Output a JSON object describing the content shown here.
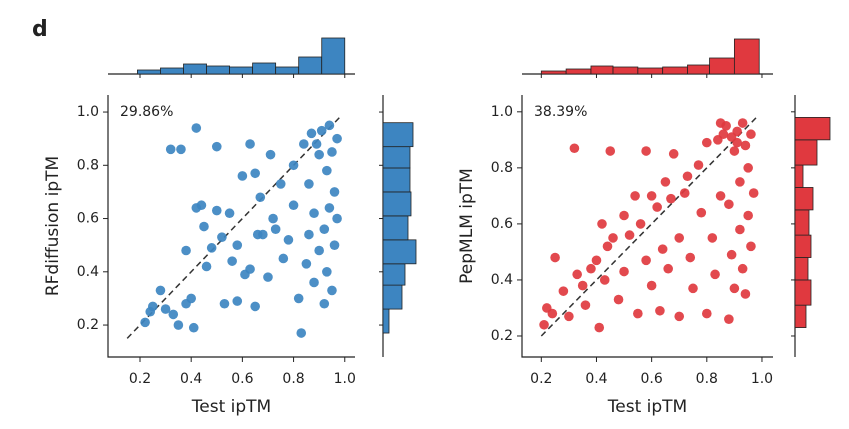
{
  "panel_label": "d",
  "chart_data": [
    {
      "type": "scatter",
      "annotation": "29.86%",
      "xlabel": "Test ipTM",
      "ylabel": "RFdiffusion ipTM",
      "color": "#3d85c1",
      "xlim": [
        0.075,
        1.04
      ],
      "ylim": [
        0.08,
        1.064
      ],
      "xticks": [
        0.2,
        0.4,
        0.6,
        0.8,
        {
          "value": 1.0,
          "label": "1.0"
        }
      ],
      "yticks": [
        0.2,
        0.4,
        0.6,
        0.8,
        {
          "value": 1.0,
          "label": "1.0"
        }
      ],
      "x": [
        0.22,
        0.24,
        0.25,
        0.28,
        0.3,
        0.32,
        0.36,
        0.33,
        0.35,
        0.38,
        0.38,
        0.4,
        0.41,
        0.42,
        0.42,
        0.44,
        0.46,
        0.45,
        0.48,
        0.5,
        0.5,
        0.52,
        0.53,
        0.55,
        0.56,
        0.58,
        0.58,
        0.6,
        0.61,
        0.63,
        0.63,
        0.65,
        0.65,
        0.66,
        0.67,
        0.68,
        0.7,
        0.71,
        0.72,
        0.73,
        0.75,
        0.76,
        0.78,
        0.8,
        0.8,
        0.82,
        0.83,
        0.84,
        0.85,
        0.86,
        0.87,
        0.88,
        0.89,
        0.9,
        0.9,
        0.91,
        0.92,
        0.92,
        0.93,
        0.93,
        0.94,
        0.94,
        0.95,
        0.95,
        0.96,
        0.96,
        0.97,
        0.97,
        0.88,
        0.86
      ],
      "y": [
        0.21,
        0.25,
        0.27,
        0.33,
        0.26,
        0.86,
        0.86,
        0.24,
        0.2,
        0.28,
        0.48,
        0.3,
        0.19,
        0.94,
        0.64,
        0.65,
        0.42,
        0.57,
        0.49,
        0.87,
        0.63,
        0.53,
        0.28,
        0.62,
        0.44,
        0.29,
        0.5,
        0.76,
        0.39,
        0.88,
        0.41,
        0.27,
        0.77,
        0.54,
        0.68,
        0.54,
        0.38,
        0.84,
        0.6,
        0.56,
        0.73,
        0.45,
        0.52,
        0.65,
        0.8,
        0.3,
        0.17,
        0.88,
        0.43,
        0.73,
        0.92,
        0.62,
        0.88,
        0.48,
        0.84,
        0.93,
        0.56,
        0.28,
        0.78,
        0.4,
        0.64,
        0.95,
        0.85,
        0.33,
        0.7,
        0.5,
        0.9,
        0.6,
        0.36,
        0.54
      ],
      "x_hist": {
        "bins": [
          0.19,
          0.28,
          0.37,
          0.46,
          0.55,
          0.64,
          0.73,
          0.82,
          0.91,
          1.0
        ],
        "counts": [
          4,
          6,
          10,
          8,
          7,
          11,
          7,
          17,
          36
        ]
      },
      "y_hist": {
        "bins": [
          0.17,
          0.26,
          0.35,
          0.43,
          0.52,
          0.61,
          0.7,
          0.79,
          0.87,
          0.96
        ],
        "counts": [
          6,
          19,
          22,
          33,
          25,
          28,
          27,
          27,
          30
        ]
      }
    },
    {
      "type": "scatter",
      "annotation": "38.39%",
      "xlabel": "Test ipTM",
      "ylabel": "PepMLM ipTM",
      "color": "#e0393f",
      "xlim": [
        0.13,
        1.04
      ],
      "ylim": [
        0.125,
        1.06
      ],
      "xticks": [
        0.2,
        0.4,
        0.6,
        0.8,
        {
          "value": 1.0,
          "label": "1.0"
        }
      ],
      "yticks": [
        0.2,
        0.4,
        0.6,
        0.8,
        {
          "value": 1.0,
          "label": "1.0"
        }
      ],
      "x": [
        0.21,
        0.22,
        0.24,
        0.25,
        0.28,
        0.3,
        0.32,
        0.33,
        0.35,
        0.36,
        0.38,
        0.4,
        0.41,
        0.42,
        0.43,
        0.44,
        0.45,
        0.46,
        0.48,
        0.5,
        0.5,
        0.52,
        0.54,
        0.55,
        0.56,
        0.58,
        0.58,
        0.6,
        0.6,
        0.62,
        0.63,
        0.64,
        0.65,
        0.66,
        0.67,
        0.68,
        0.7,
        0.7,
        0.72,
        0.73,
        0.74,
        0.75,
        0.77,
        0.78,
        0.8,
        0.8,
        0.82,
        0.83,
        0.84,
        0.85,
        0.86,
        0.87,
        0.88,
        0.88,
        0.89,
        0.9,
        0.9,
        0.91,
        0.92,
        0.92,
        0.93,
        0.93,
        0.94,
        0.94,
        0.95,
        0.95,
        0.96,
        0.96,
        0.97,
        0.85,
        0.91,
        0.89
      ],
      "y": [
        0.24,
        0.3,
        0.28,
        0.48,
        0.36,
        0.27,
        0.87,
        0.42,
        0.38,
        0.31,
        0.44,
        0.47,
        0.23,
        0.6,
        0.4,
        0.52,
        0.86,
        0.55,
        0.33,
        0.63,
        0.43,
        0.56,
        0.7,
        0.28,
        0.6,
        0.86,
        0.47,
        0.7,
        0.38,
        0.66,
        0.29,
        0.51,
        0.75,
        0.44,
        0.69,
        0.85,
        0.27,
        0.55,
        0.71,
        0.77,
        0.48,
        0.37,
        0.81,
        0.64,
        0.28,
        0.89,
        0.55,
        0.42,
        0.9,
        0.7,
        0.92,
        0.95,
        0.67,
        0.26,
        0.49,
        0.86,
        0.37,
        0.93,
        0.75,
        0.58,
        0.96,
        0.44,
        0.88,
        0.35,
        0.8,
        0.63,
        0.92,
        0.52,
        0.71,
        0.96,
        0.89,
        0.91
      ],
      "x_hist": {
        "bins": [
          0.2,
          0.29,
          0.38,
          0.46,
          0.55,
          0.64,
          0.73,
          0.81,
          0.9,
          0.99
        ],
        "counts": [
          3,
          5,
          8,
          7,
          6,
          7,
          9,
          16,
          35
        ]
      },
      "y_hist": {
        "bins": [
          0.23,
          0.31,
          0.4,
          0.48,
          0.56,
          0.65,
          0.73,
          0.81,
          0.9,
          0.98
        ],
        "counts": [
          11,
          16,
          13,
          16,
          14,
          18,
          8,
          22,
          35
        ]
      }
    }
  ]
}
